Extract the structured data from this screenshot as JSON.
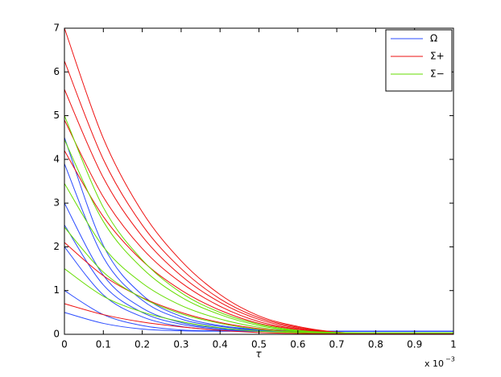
{
  "chart_data": {
    "type": "line",
    "xlabel": "τ",
    "x_multiplier": "x 10",
    "x_exponent": "−3",
    "x": [
      0,
      0.0001,
      0.0002,
      0.0003,
      0.0004,
      0.0005,
      0.0006,
      0.0007,
      0.0008,
      0.0009,
      0.001
    ],
    "xlim": [
      0,
      0.001
    ],
    "xticks": [
      0,
      {
        "value": 0.0001,
        "label": "0.1"
      },
      {
        "value": 0.0002,
        "label": "0.2"
      },
      {
        "value": 0.0003,
        "label": "0.3"
      },
      {
        "value": 0.0004,
        "label": "0.4"
      },
      {
        "value": 0.0005,
        "label": "0.5"
      },
      {
        "value": 0.0006,
        "label": "0.6"
      },
      {
        "value": 0.0007,
        "label": "0.7"
      },
      {
        "value": 0.0008,
        "label": "0.8"
      },
      {
        "value": 0.0009,
        "label": "0.9"
      },
      {
        "value": 0.001,
        "label": "1"
      }
    ],
    "ylim": [
      0,
      7
    ],
    "yticks": [
      0,
      1,
      2,
      3,
      4,
      5,
      6,
      7
    ],
    "legend": "upper right",
    "series": [
      {
        "name": "Ω",
        "color": "#2b4cff",
        "lines": [
          [
            4.5,
            2.03,
            0.9,
            0.41,
            0.2,
            0.11,
            0.08,
            0.07,
            0.07,
            0.07,
            0.07
          ],
          [
            3.9,
            1.76,
            0.78,
            0.35,
            0.18,
            0.1,
            0.08,
            0.07,
            0.07,
            0.07,
            0.07
          ],
          [
            3.0,
            1.35,
            0.6,
            0.27,
            0.14,
            0.09,
            0.07,
            0.07,
            0.07,
            0.07,
            0.07
          ],
          [
            2.5,
            1.13,
            0.5,
            0.23,
            0.12,
            0.08,
            0.07,
            0.07,
            0.07,
            0.07,
            0.07
          ],
          [
            2.0,
            0.9,
            0.4,
            0.18,
            0.1,
            0.08,
            0.07,
            0.07,
            0.07,
            0.07,
            0.07
          ],
          [
            1.0,
            0.45,
            0.2,
            0.1,
            0.08,
            0.07,
            0.07,
            0.07,
            0.07,
            0.07,
            0.07
          ],
          [
            0.5,
            0.25,
            0.12,
            0.08,
            0.07,
            0.07,
            0.07,
            0.07,
            0.07,
            0.07,
            0.07
          ]
        ]
      },
      {
        "name": "Σ+",
        "color": "#ee1111",
        "lines": [
          [
            7,
            4.48,
            2.8,
            1.68,
            0.91,
            0.42,
            0.18,
            0.05,
            0.02,
            0.01,
            0.01
          ],
          [
            6.25,
            4.0,
            2.5,
            1.5,
            0.81,
            0.38,
            0.16,
            0.04,
            0.02,
            0.01,
            0.01
          ],
          [
            5.6,
            3.58,
            2.24,
            1.34,
            0.73,
            0.34,
            0.14,
            0.04,
            0.02,
            0.01,
            0.01
          ],
          [
            4.9,
            3.14,
            1.96,
            1.18,
            0.64,
            0.29,
            0.12,
            0.03,
            0.02,
            0.01,
            0.01
          ],
          [
            4.2,
            2.69,
            1.68,
            1.01,
            0.55,
            0.25,
            0.11,
            0.03,
            0.02,
            0.01,
            0.01
          ],
          [
            2.1,
            1.34,
            0.84,
            0.5,
            0.27,
            0.13,
            0.05,
            0.02,
            0.01,
            0.01,
            0.01
          ],
          [
            0.7,
            0.45,
            0.28,
            0.17,
            0.09,
            0.04,
            0.02,
            0.01,
            0.01,
            0.01,
            0.01
          ]
        ]
      },
      {
        "name": "Σ−",
        "color": "#66dd00",
        "lines": [
          [
            5.0,
            2.9,
            1.7,
            0.95,
            0.5,
            0.23,
            0.09,
            0.04,
            0.03,
            0.03,
            0.03
          ],
          [
            4.45,
            2.58,
            1.51,
            0.85,
            0.45,
            0.2,
            0.08,
            0.04,
            0.03,
            0.03,
            0.03
          ],
          [
            3.45,
            2.0,
            1.17,
            0.66,
            0.35,
            0.16,
            0.07,
            0.04,
            0.03,
            0.03,
            0.03
          ],
          [
            2.45,
            1.42,
            0.83,
            0.47,
            0.25,
            0.11,
            0.05,
            0.03,
            0.03,
            0.03,
            0.03
          ],
          [
            1.5,
            0.87,
            0.51,
            0.29,
            0.15,
            0.07,
            0.04,
            0.03,
            0.03,
            0.03,
            0.03
          ]
        ]
      }
    ]
  }
}
